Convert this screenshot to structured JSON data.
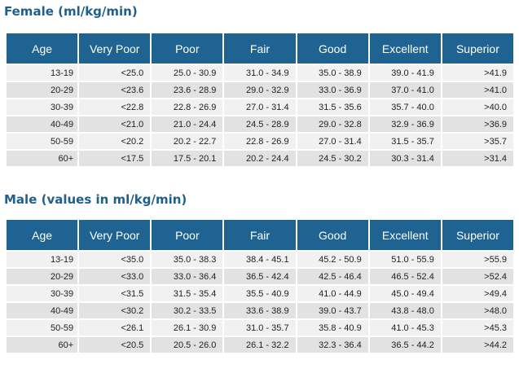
{
  "female": {
    "title": "Female (ml/kg/min)",
    "headers": [
      "Age",
      "Very Poor",
      "Poor",
      "Fair",
      "Good",
      "Excellent",
      "Superior"
    ],
    "rows": [
      [
        "13-19",
        "<25.0",
        "25.0 - 30.9",
        "31.0 - 34.9",
        "35.0 - 38.9",
        "39.0 - 41.9",
        ">41.9"
      ],
      [
        "20-29",
        "<23.6",
        "23.6 - 28.9",
        "29.0 - 32.9",
        "33.0 - 36.9",
        "37.0 - 41.0",
        ">41.0"
      ],
      [
        "30-39",
        "<22.8",
        "22.8 - 26.9",
        "27.0 - 31.4",
        "31.5 - 35.6",
        "35.7 - 40.0",
        ">40.0"
      ],
      [
        "40-49",
        "<21.0",
        "21.0 - 24.4",
        "24.5 - 28.9",
        "29.0 - 32.8",
        "32.9 - 36.9",
        ">36.9"
      ],
      [
        "50-59",
        "<20.2",
        "20.2 - 22.7",
        "22.8 - 26.9",
        "27.0 - 31.4",
        "31.5 - 35.7",
        ">35.7"
      ],
      [
        "60+",
        "<17.5",
        "17.5 - 20.1",
        "20.2 - 24.4",
        "24.5 - 30.2",
        "30.3 - 31.4",
        ">31.4"
      ]
    ]
  },
  "male": {
    "title": "Male (values in ml/kg/min)",
    "headers": [
      "Age",
      "Very Poor",
      "Poor",
      "Fair",
      "Good",
      "Excellent",
      "Superior"
    ],
    "rows": [
      [
        "13-19",
        "<35.0",
        "35.0 - 38.3",
        "38.4 - 45.1",
        "45.2 - 50.9",
        "51.0 - 55.9",
        ">55.9"
      ],
      [
        "20-29",
        "<33.0",
        "33.0 - 36.4",
        "36.5 - 42.4",
        "42.5 - 46.4",
        "46.5 - 52.4",
        ">52.4"
      ],
      [
        "30-39",
        "<31.5",
        "31.5 - 35.4",
        "35.5 - 40.9",
        "41.0 - 44.9",
        "45.0 - 49.4",
        ">49.4"
      ],
      [
        "40-49",
        "<30.2",
        "30.2 - 33.5",
        "33.6 - 38.9",
        "39.0 - 43.7",
        "43.8 - 48.0",
        ">48.0"
      ],
      [
        "50-59",
        "<26.1",
        "26.1 - 30.9",
        "31.0 - 35.7",
        "35.8 - 40.9",
        "41.0 - 45.3",
        ">45.3"
      ],
      [
        "60+",
        "<20.5",
        "20.5 - 26.0",
        "26.1 - 32.2",
        "32.3 - 36.4",
        "36.5 - 44.2",
        ">44.2"
      ]
    ]
  },
  "colors": {
    "title": "#1f5f8b",
    "header_bg": "#1e6391",
    "row_light": "#f1f1f1",
    "row_dark": "#e2e2e2"
  }
}
